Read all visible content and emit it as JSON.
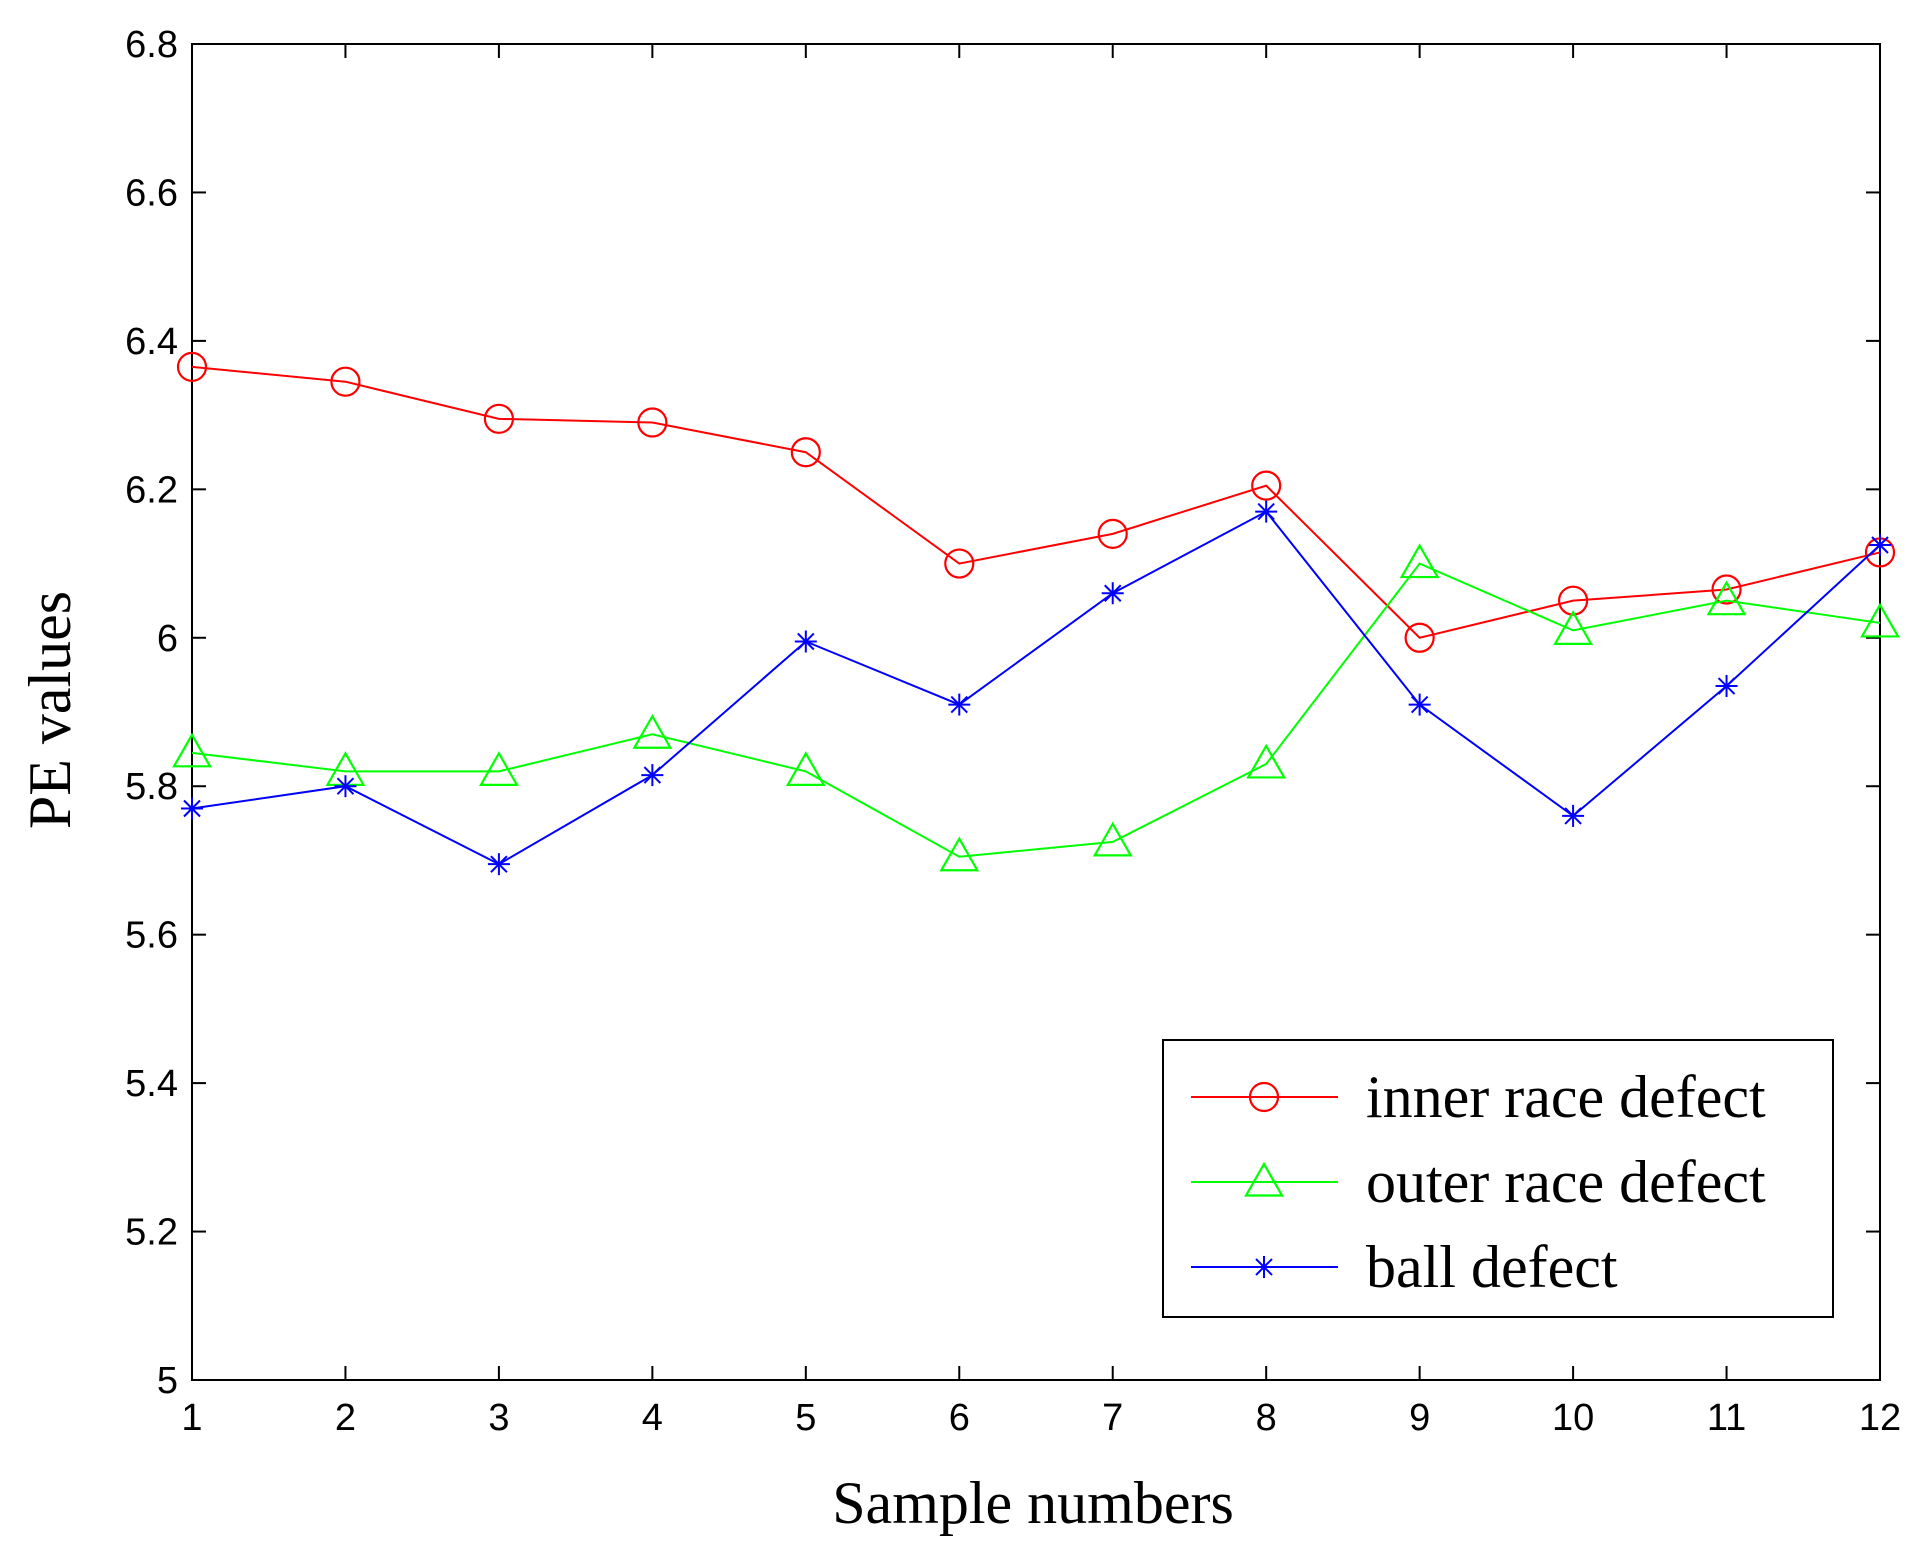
{
  "chart_data": {
    "type": "line",
    "title": "",
    "xlabel": "Sample numbers",
    "ylabel": "PE values",
    "x": [
      1,
      2,
      3,
      4,
      5,
      6,
      7,
      8,
      9,
      10,
      11,
      12
    ],
    "xlim": [
      1,
      12
    ],
    "ylim": [
      5,
      6.8
    ],
    "xticks": [
      "1",
      "2",
      "3",
      "4",
      "5",
      "6",
      "7",
      "8",
      "9",
      "10",
      "11",
      "12"
    ],
    "yticks": [
      "5",
      "5.2",
      "5.4",
      "5.6",
      "5.8",
      "6",
      "6.2",
      "6.4",
      "6.6",
      "6.8"
    ],
    "grid": false,
    "legend_position": "bottom-right",
    "series": [
      {
        "name": "inner race defect",
        "color": "#ff0000",
        "marker": "circle",
        "values": [
          6.365,
          6.345,
          6.295,
          6.29,
          6.25,
          6.1,
          6.14,
          6.205,
          6.0,
          6.05,
          6.065,
          6.115
        ]
      },
      {
        "name": "outer race defect",
        "color": "#00ff00",
        "marker": "triangle",
        "values": [
          5.845,
          5.82,
          5.82,
          5.87,
          5.82,
          5.705,
          5.725,
          5.83,
          6.1,
          6.01,
          6.05,
          6.02
        ]
      },
      {
        "name": "ball defect",
        "color": "#0000ff",
        "marker": "asterisk",
        "values": [
          5.77,
          5.8,
          5.695,
          5.815,
          5.995,
          5.91,
          6.06,
          6.17,
          5.91,
          5.76,
          5.935,
          6.125
        ]
      }
    ]
  }
}
